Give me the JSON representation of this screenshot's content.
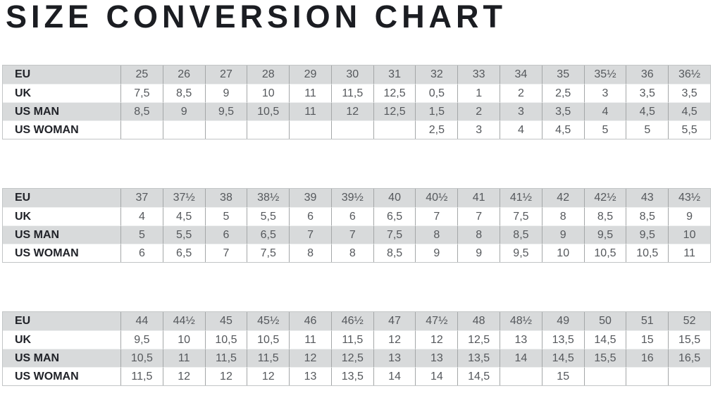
{
  "title": "SIZE CONVERSION CHART",
  "colors": {
    "title_text": "#1b1d22",
    "shaded_row_bg": "#d8dadb",
    "plain_row_bg": "#ffffff",
    "cell_border": "#a4a7a8",
    "table_border": "#c2c5c6",
    "label_text": "#212329",
    "value_text": "#55585c"
  },
  "tables": [
    {
      "rows": [
        {
          "label": "EU",
          "shaded": true,
          "values": [
            "25",
            "26",
            "27",
            "28",
            "29",
            "30",
            "31",
            "32",
            "33",
            "34",
            "35",
            "35½",
            "36",
            "36½"
          ]
        },
        {
          "label": "UK",
          "shaded": false,
          "values": [
            "7,5",
            "8,5",
            "9",
            "10",
            "11",
            "11,5",
            "12,5",
            "0,5",
            "1",
            "2",
            "2,5",
            "3",
            "3,5",
            "3,5"
          ]
        },
        {
          "label": "US MAN",
          "shaded": true,
          "values": [
            "8,5",
            "9",
            "9,5",
            "10,5",
            "11",
            "12",
            "12,5",
            "1,5",
            "2",
            "3",
            "3,5",
            "4",
            "4,5",
            "4,5"
          ]
        },
        {
          "label": "US WOMAN",
          "shaded": false,
          "values": [
            "",
            "",
            "",
            "",
            "",
            "",
            "",
            "2,5",
            "3",
            "4",
            "4,5",
            "5",
            "5",
            "5,5"
          ]
        }
      ]
    },
    {
      "rows": [
        {
          "label": "EU",
          "shaded": true,
          "values": [
            "37",
            "37½",
            "38",
            "38½",
            "39",
            "39½",
            "40",
            "40½",
            "41",
            "41½",
            "42",
            "42½",
            "43",
            "43½"
          ]
        },
        {
          "label": "UK",
          "shaded": false,
          "values": [
            "4",
            "4,5",
            "5",
            "5,5",
            "6",
            "6",
            "6,5",
            "7",
            "7",
            "7,5",
            "8",
            "8,5",
            "8,5",
            "9"
          ]
        },
        {
          "label": "US MAN",
          "shaded": true,
          "values": [
            "5",
            "5,5",
            "6",
            "6,5",
            "7",
            "7",
            "7,5",
            "8",
            "8",
            "8,5",
            "9",
            "9,5",
            "9,5",
            "10"
          ]
        },
        {
          "label": "US WOMAN",
          "shaded": false,
          "values": [
            "6",
            "6,5",
            "7",
            "7,5",
            "8",
            "8",
            "8,5",
            "9",
            "9",
            "9,5",
            "10",
            "10,5",
            "10,5",
            "11"
          ]
        }
      ]
    },
    {
      "rows": [
        {
          "label": "EU",
          "shaded": true,
          "values": [
            "44",
            "44½",
            "45",
            "45½",
            "46",
            "46½",
            "47",
            "47½",
            "48",
            "48½",
            "49",
            "50",
            "51",
            "52"
          ]
        },
        {
          "label": "UK",
          "shaded": false,
          "values": [
            "9,5",
            "10",
            "10,5",
            "10,5",
            "11",
            "11,5",
            "12",
            "12",
            "12,5",
            "13",
            "13,5",
            "14,5",
            "15",
            "15,5"
          ]
        },
        {
          "label": "US MAN",
          "shaded": true,
          "values": [
            "10,5",
            "11",
            "11,5",
            "11,5",
            "12",
            "12,5",
            "13",
            "13",
            "13,5",
            "14",
            "14,5",
            "15,5",
            "16",
            "16,5"
          ]
        },
        {
          "label": "US WOMAN",
          "shaded": false,
          "values": [
            "11,5",
            "12",
            "12",
            "12",
            "13",
            "13,5",
            "14",
            "14",
            "14,5",
            "",
            "15",
            "",
            "",
            ""
          ]
        }
      ]
    }
  ]
}
